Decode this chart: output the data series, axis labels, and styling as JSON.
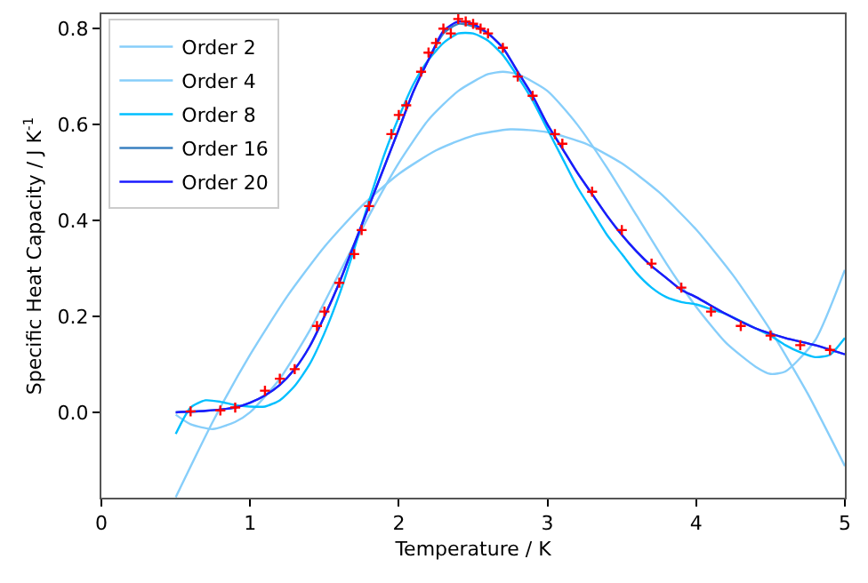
{
  "chart_data": {
    "type": "line",
    "xlabel": "Temperature / K",
    "ylabel": "Specific Heat Capacity / J K$^{-1}$",
    "xlim": [
      0,
      5
    ],
    "xticks": [
      0,
      1,
      2,
      3,
      4,
      5
    ],
    "ylim": [
      -0.178,
      0.83
    ],
    "yticks": [
      {
        "value": 0,
        "label": "0.0"
      },
      {
        "value": 0.2,
        "label": "0.2"
      },
      {
        "value": 0.4,
        "label": "0.4"
      },
      {
        "value": 0.6,
        "label": "0.6"
      },
      {
        "value": 0.8,
        "label": "0.8"
      }
    ],
    "legend": "top left",
    "line_style": "solid",
    "series": [
      {
        "name": "Order 2",
        "color": "#87cefa",
        "x": [
          0.5,
          0.75,
          1,
          1.25,
          1.5,
          1.75,
          2,
          2.25,
          2.5,
          2.75,
          3,
          3.25,
          3.5,
          3.75,
          4,
          4.25,
          4.5,
          4.75,
          5
        ],
        "values": [
          -0.177,
          -0.019,
          0.12,
          0.242,
          0.345,
          0.43,
          0.497,
          0.546,
          0.577,
          0.59,
          0.584,
          0.561,
          0.519,
          0.459,
          0.381,
          0.285,
          0.171,
          0.039,
          -0.112
        ]
      },
      {
        "name": "Order 4",
        "color": "#87cefa",
        "x": [
          0.5,
          0.6,
          0.75,
          0.9,
          1.0,
          1.2,
          1.4,
          1.6,
          1.8,
          2.0,
          2.2,
          2.4,
          2.6,
          2.7,
          2.8,
          3.0,
          3.2,
          3.4,
          3.6,
          3.8,
          4.0,
          4.2,
          4.4,
          4.5,
          4.6,
          4.8,
          5.0
        ],
        "values": [
          -0.005,
          -0.025,
          -0.035,
          -0.02,
          0.0,
          0.07,
          0.17,
          0.29,
          0.41,
          0.52,
          0.61,
          0.67,
          0.705,
          0.71,
          0.705,
          0.67,
          0.6,
          0.51,
          0.41,
          0.31,
          0.22,
          0.145,
          0.095,
          0.08,
          0.085,
          0.15,
          0.297
        ]
      },
      {
        "name": "Order 8",
        "color": "#00bfff",
        "x": [
          0.5,
          0.6,
          0.7,
          0.8,
          0.9,
          1.0,
          1.1,
          1.2,
          1.3,
          1.4,
          1.5,
          1.6,
          1.7,
          1.8,
          1.9,
          2.0,
          2.1,
          2.2,
          2.3,
          2.4,
          2.5,
          2.6,
          2.7,
          2.8,
          2.9,
          3.0,
          3.1,
          3.2,
          3.3,
          3.4,
          3.5,
          3.6,
          3.7,
          3.8,
          3.9,
          4.0,
          4.1,
          4.2,
          4.3,
          4.4,
          4.5,
          4.6,
          4.7,
          4.8,
          4.9,
          5.0
        ],
        "values": [
          -0.045,
          0.01,
          0.025,
          0.022,
          0.015,
          0.012,
          0.012,
          0.025,
          0.055,
          0.1,
          0.165,
          0.245,
          0.34,
          0.44,
          0.535,
          0.615,
          0.685,
          0.735,
          0.77,
          0.79,
          0.79,
          0.775,
          0.745,
          0.7,
          0.65,
          0.59,
          0.53,
          0.47,
          0.42,
          0.37,
          0.33,
          0.29,
          0.26,
          0.24,
          0.23,
          0.225,
          0.215,
          0.205,
          0.19,
          0.175,
          0.16,
          0.14,
          0.125,
          0.115,
          0.12,
          0.155
        ]
      },
      {
        "name": "Order 16",
        "color": "#3a80c0",
        "x": [
          0.5,
          0.7,
          0.9,
          1.0,
          1.1,
          1.2,
          1.3,
          1.4,
          1.5,
          1.6,
          1.7,
          1.8,
          1.9,
          2.0,
          2.1,
          2.2,
          2.3,
          2.4,
          2.5,
          2.6,
          2.7,
          2.8,
          2.9,
          3.0,
          3.1,
          3.2,
          3.3,
          3.4,
          3.5,
          3.6,
          3.7,
          3.8,
          3.9,
          4.0,
          4.2,
          4.4,
          4.6,
          4.8,
          5.0
        ],
        "values": [
          0.0,
          0.003,
          0.01,
          0.02,
          0.035,
          0.057,
          0.09,
          0.137,
          0.2,
          0.27,
          0.35,
          0.43,
          0.51,
          0.59,
          0.67,
          0.735,
          0.79,
          0.81,
          0.805,
          0.79,
          0.76,
          0.71,
          0.66,
          0.6,
          0.55,
          0.5,
          0.455,
          0.41,
          0.37,
          0.335,
          0.305,
          0.28,
          0.255,
          0.24,
          0.205,
          0.175,
          0.155,
          0.14,
          0.121
        ]
      },
      {
        "name": "Order 20",
        "color": "#1a1aff",
        "x": [
          0.5,
          0.7,
          0.9,
          1.0,
          1.1,
          1.2,
          1.3,
          1.4,
          1.5,
          1.6,
          1.7,
          1.8,
          1.9,
          2.0,
          2.1,
          2.2,
          2.3,
          2.4,
          2.5,
          2.6,
          2.7,
          2.8,
          2.9,
          3.0,
          3.1,
          3.2,
          3.3,
          3.4,
          3.5,
          3.6,
          3.7,
          3.8,
          3.9,
          4.0,
          4.2,
          4.4,
          4.6,
          4.8,
          5.0
        ],
        "values": [
          0.0,
          0.003,
          0.01,
          0.02,
          0.035,
          0.057,
          0.09,
          0.137,
          0.2,
          0.27,
          0.35,
          0.43,
          0.51,
          0.59,
          0.67,
          0.735,
          0.795,
          0.815,
          0.81,
          0.79,
          0.76,
          0.71,
          0.66,
          0.6,
          0.55,
          0.5,
          0.455,
          0.41,
          0.37,
          0.335,
          0.305,
          0.28,
          0.255,
          0.24,
          0.205,
          0.175,
          0.155,
          0.14,
          0.121
        ]
      },
      {
        "type": "scatter",
        "marker": "cross",
        "color": "#ff0000",
        "x": [
          0.6,
          0.8,
          0.9,
          1.1,
          1.2,
          1.3,
          1.45,
          1.5,
          1.6,
          1.7,
          1.75,
          1.8,
          1.95,
          2.0,
          2.05,
          2.15,
          2.2,
          2.25,
          2.3,
          2.35,
          2.4,
          2.45,
          2.5,
          2.55,
          2.6,
          2.7,
          2.8,
          2.9,
          3.05,
          3.1,
          3.3,
          3.5,
          3.7,
          3.9,
          4.1,
          4.3,
          4.5,
          4.7,
          4.9
        ],
        "values": [
          0.002,
          0.004,
          0.01,
          0.045,
          0.07,
          0.09,
          0.18,
          0.21,
          0.27,
          0.33,
          0.38,
          0.43,
          0.58,
          0.62,
          0.64,
          0.71,
          0.75,
          0.77,
          0.8,
          0.79,
          0.82,
          0.815,
          0.81,
          0.8,
          0.79,
          0.76,
          0.7,
          0.66,
          0.58,
          0.56,
          0.46,
          0.38,
          0.31,
          0.26,
          0.21,
          0.18,
          0.16,
          0.14,
          0.13
        ]
      }
    ]
  }
}
